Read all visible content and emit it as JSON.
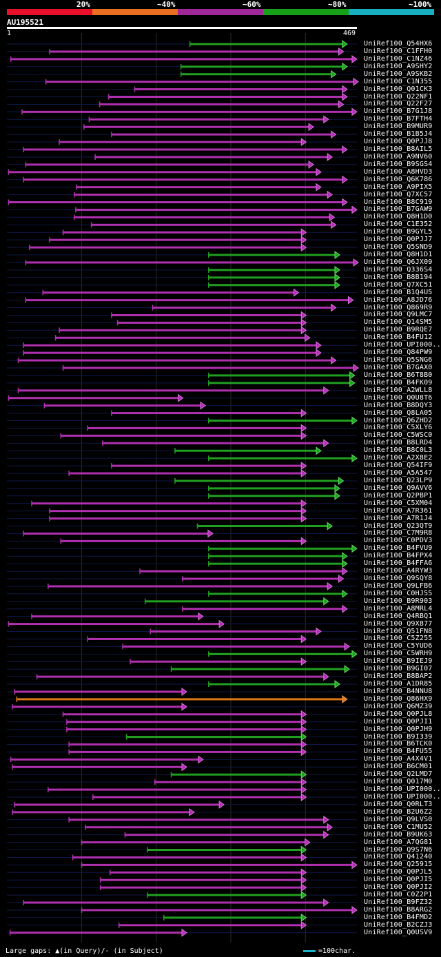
{
  "legend": {
    "segments": [
      {
        "label": "20%",
        "color": "#e8102a"
      },
      {
        "label": "~40%",
        "color": "#e87020"
      },
      {
        "label": "~60%",
        "color": "#a02898"
      },
      {
        "label": "~80%",
        "color": "#18a018"
      },
      {
        "label": "~100%",
        "color": "#18b0c0"
      }
    ]
  },
  "query": {
    "id": "AU195521",
    "start": "1",
    "end": "469",
    "length": 469
  },
  "hits": [
    {
      "id": "UniRef100_Q54HX6",
      "start": 245,
      "end": 455,
      "color": "green"
    },
    {
      "id": "UniRef100_C1FFH0",
      "start": 57,
      "end": 450,
      "color": "purple"
    },
    {
      "id": "UniRef100_C1NZ46",
      "start": 5,
      "end": 468,
      "color": "purple"
    },
    {
      "id": "UniRef100_A9SHY2",
      "start": 233,
      "end": 455,
      "color": "green"
    },
    {
      "id": "UniRef100_A9SKB2",
      "start": 233,
      "end": 440,
      "color": "green"
    },
    {
      "id": "UniRef100_C1N355",
      "start": 52,
      "end": 470,
      "color": "purple"
    },
    {
      "id": "UniRef100_Q01CK3",
      "start": 171,
      "end": 455,
      "color": "purple"
    },
    {
      "id": "UniRef100_Q22NF1",
      "start": 136,
      "end": 455,
      "color": "purple"
    },
    {
      "id": "UniRef100_Q22F27",
      "start": 124,
      "end": 450,
      "color": "purple"
    },
    {
      "id": "UniRef100_B7G1J8",
      "start": 20,
      "end": 468,
      "color": "purple"
    },
    {
      "id": "UniRef100_B7FTH4",
      "start": 110,
      "end": 430,
      "color": "purple"
    },
    {
      "id": "UniRef100_B9MUR9",
      "start": 103,
      "end": 410,
      "color": "purple"
    },
    {
      "id": "UniRef100_B1B5J4",
      "start": 140,
      "end": 440,
      "color": "purple"
    },
    {
      "id": "UniRef100_Q0PJJ8",
      "start": 70,
      "end": 400,
      "color": "purple"
    },
    {
      "id": "UniRef100_B8AIL5",
      "start": 22,
      "end": 455,
      "color": "purple"
    },
    {
      "id": "UniRef100_A9NV60",
      "start": 118,
      "end": 435,
      "color": "purple"
    },
    {
      "id": "UniRef100_B9SGS4",
      "start": 25,
      "end": 410,
      "color": "purple"
    },
    {
      "id": "UniRef100_A8HVD3",
      "start": 2,
      "end": 420,
      "color": "purple"
    },
    {
      "id": "UniRef100_Q6K786",
      "start": 22,
      "end": 455,
      "color": "purple"
    },
    {
      "id": "UniRef100_A9PIX5",
      "start": 93,
      "end": 420,
      "color": "purple"
    },
    {
      "id": "UniRef100_Q7XC57",
      "start": 90,
      "end": 435,
      "color": "purple"
    },
    {
      "id": "UniRef100_B8C919",
      "start": 2,
      "end": 455,
      "color": "purple"
    },
    {
      "id": "UniRef100_B7GAW9",
      "start": 92,
      "end": 468,
      "color": "purple"
    },
    {
      "id": "UniRef100_Q8H1D0",
      "start": 90,
      "end": 438,
      "color": "purple"
    },
    {
      "id": "UniRef100_C1E352",
      "start": 113,
      "end": 440,
      "color": "purple"
    },
    {
      "id": "UniRef100_B9GYL5",
      "start": 75,
      "end": 400,
      "color": "purple"
    },
    {
      "id": "UniRef100_Q0PJJ7",
      "start": 57,
      "end": 400,
      "color": "purple"
    },
    {
      "id": "UniRef100_Q5SND9",
      "start": 30,
      "end": 400,
      "color": "purple"
    },
    {
      "id": "UniRef100_Q8H1D1",
      "start": 270,
      "end": 445,
      "color": "green"
    },
    {
      "id": "UniRef100_Q6JX09",
      "start": 25,
      "end": 470,
      "color": "purple"
    },
    {
      "id": "UniRef100_Q336S4",
      "start": 270,
      "end": 445,
      "color": "green"
    },
    {
      "id": "UniRef100_B8B194",
      "start": 270,
      "end": 445,
      "color": "green"
    },
    {
      "id": "UniRef100_Q7XC51",
      "start": 270,
      "end": 445,
      "color": "green"
    },
    {
      "id": "UniRef100_B1Q4U5",
      "start": 48,
      "end": 390,
      "color": "purple"
    },
    {
      "id": "UniRef100_A8JD76",
      "start": 25,
      "end": 463,
      "color": "purple"
    },
    {
      "id": "UniRef100_Q869R9",
      "start": 195,
      "end": 440,
      "color": "purple"
    },
    {
      "id": "UniRef100_Q9LMC7",
      "start": 140,
      "end": 400,
      "color": "purple"
    },
    {
      "id": "UniRef100_Q14SM5",
      "start": 148,
      "end": 400,
      "color": "purple"
    },
    {
      "id": "UniRef100_B9RQE7",
      "start": 70,
      "end": 400,
      "color": "purple"
    },
    {
      "id": "UniRef100_B4FU12",
      "start": 65,
      "end": 405,
      "color": "purple"
    },
    {
      "id": "UniRef100_UPI000..",
      "start": 22,
      "end": 420,
      "color": "purple"
    },
    {
      "id": "UniRef100_Q84PW9",
      "start": 22,
      "end": 420,
      "color": "purple"
    },
    {
      "id": "UniRef100_Q5SNG6",
      "start": 15,
      "end": 440,
      "color": "purple"
    },
    {
      "id": "UniRef100_B7GAX0",
      "start": 75,
      "end": 470,
      "color": "purple"
    },
    {
      "id": "UniRef100_B6T8B0",
      "start": 270,
      "end": 465,
      "color": "green"
    },
    {
      "id": "UniRef100_B4FK09",
      "start": 270,
      "end": 465,
      "color": "green"
    },
    {
      "id": "UniRef100_A2WLL8",
      "start": 15,
      "end": 430,
      "color": "purple"
    },
    {
      "id": "UniRef100_Q0U8T6",
      "start": 2,
      "end": 235,
      "color": "purple"
    },
    {
      "id": "UniRef100_B8DQY3",
      "start": 50,
      "end": 265,
      "color": "purple"
    },
    {
      "id": "UniRef100_Q8LA05",
      "start": 140,
      "end": 400,
      "color": "purple"
    },
    {
      "id": "UniRef100_Q6ZHD2",
      "start": 270,
      "end": 468,
      "color": "green"
    },
    {
      "id": "UniRef100_C5XLY6",
      "start": 108,
      "end": 400,
      "color": "purple"
    },
    {
      "id": "UniRef100_C5WSC0",
      "start": 72,
      "end": 400,
      "color": "purple"
    },
    {
      "id": "UniRef100_B8LRD4",
      "start": 128,
      "end": 430,
      "color": "purple"
    },
    {
      "id": "UniRef100_B8C0L3",
      "start": 225,
      "end": 420,
      "color": "green"
    },
    {
      "id": "UniRef100_A2X8E2",
      "start": 270,
      "end": 468,
      "color": "green"
    },
    {
      "id": "UniRef100_Q54IF9",
      "start": 140,
      "end": 400,
      "color": "purple"
    },
    {
      "id": "UniRef100_A5A547",
      "start": 83,
      "end": 400,
      "color": "purple"
    },
    {
      "id": "UniRef100_Q23LP9",
      "start": 225,
      "end": 450,
      "color": "green"
    },
    {
      "id": "UniRef100_Q9AVV6",
      "start": 270,
      "end": 445,
      "color": "green"
    },
    {
      "id": "UniRef100_Q2PBP1",
      "start": 270,
      "end": 445,
      "color": "green"
    },
    {
      "id": "UniRef100_C5XM04",
      "start": 33,
      "end": 400,
      "color": "purple"
    },
    {
      "id": "UniRef100_A7R361",
      "start": 57,
      "end": 400,
      "color": "purple"
    },
    {
      "id": "UniRef100_A7R1J4",
      "start": 57,
      "end": 400,
      "color": "purple"
    },
    {
      "id": "UniRef100_Q23QT9",
      "start": 255,
      "end": 435,
      "color": "green"
    },
    {
      "id": "UniRef100_C7M9R8",
      "start": 22,
      "end": 275,
      "color": "purple"
    },
    {
      "id": "UniRef100_C0PDV3",
      "start": 72,
      "end": 400,
      "color": "purple"
    },
    {
      "id": "UniRef100_B4FVU9",
      "start": 270,
      "end": 468,
      "color": "green"
    },
    {
      "id": "UniRef100_B4FPX4",
      "start": 270,
      "end": 455,
      "color": "green"
    },
    {
      "id": "UniRef100_B4FFA6",
      "start": 270,
      "end": 455,
      "color": "green"
    },
    {
      "id": "UniRef100_A4RYW3",
      "start": 178,
      "end": 455,
      "color": "purple"
    },
    {
      "id": "UniRef100_Q9SQY8",
      "start": 235,
      "end": 450,
      "color": "purple"
    },
    {
      "id": "UniRef100_Q9LFB6",
      "start": 55,
      "end": 435,
      "color": "purple"
    },
    {
      "id": "UniRef100_C0HJ55",
      "start": 270,
      "end": 455,
      "color": "green"
    },
    {
      "id": "UniRef100_B9R903",
      "start": 185,
      "end": 430,
      "color": "green"
    },
    {
      "id": "UniRef100_A8MRL4",
      "start": 235,
      "end": 455,
      "color": "purple"
    },
    {
      "id": "UniRef100_Q4RBQ1",
      "start": 33,
      "end": 262,
      "color": "purple"
    },
    {
      "id": "UniRef100_Q9X877",
      "start": 2,
      "end": 290,
      "color": "purple"
    },
    {
      "id": "UniRef100_Q51FN8",
      "start": 192,
      "end": 420,
      "color": "purple"
    },
    {
      "id": "UniRef100_C5Z255",
      "start": 108,
      "end": 400,
      "color": "purple"
    },
    {
      "id": "UniRef100_C5YUD6",
      "start": 155,
      "end": 458,
      "color": "purple"
    },
    {
      "id": "UniRef100_C5WRH9",
      "start": 270,
      "end": 468,
      "color": "green"
    },
    {
      "id": "UniRef100_B9IEJ9",
      "start": 165,
      "end": 400,
      "color": "purple"
    },
    {
      "id": "UniRef100_B9GI07",
      "start": 220,
      "end": 458,
      "color": "green"
    },
    {
      "id": "UniRef100_B8BAP2",
      "start": 40,
      "end": 430,
      "color": "purple"
    },
    {
      "id": "UniRef100_A1DR85",
      "start": 270,
      "end": 445,
      "color": "green"
    },
    {
      "id": "UniRef100_B4NNU8",
      "start": 10,
      "end": 240,
      "color": "purple"
    },
    {
      "id": "UniRef100_Q86HX9",
      "start": 13,
      "end": 455,
      "color": "orange"
    },
    {
      "id": "UniRef100_Q6MZ39",
      "start": 7,
      "end": 240,
      "color": "purple"
    },
    {
      "id": "UniRef100_Q0PJL8",
      "start": 75,
      "end": 400,
      "color": "purple"
    },
    {
      "id": "UniRef100_Q0PJI1",
      "start": 80,
      "end": 400,
      "color": "purple"
    },
    {
      "id": "UniRef100_Q0PJH9",
      "start": 80,
      "end": 400,
      "color": "purple"
    },
    {
      "id": "UniRef100_B9I339",
      "start": 160,
      "end": 400,
      "color": "green"
    },
    {
      "id": "UniRef100_B6TCK0",
      "start": 83,
      "end": 400,
      "color": "purple"
    },
    {
      "id": "UniRef100_B4FU55",
      "start": 83,
      "end": 400,
      "color": "purple"
    },
    {
      "id": "UniRef100_A4X4V1",
      "start": 5,
      "end": 262,
      "color": "purple"
    },
    {
      "id": "UniRef100_B6CM01",
      "start": 7,
      "end": 240,
      "color": "purple"
    },
    {
      "id": "UniRef100_Q2LMD7",
      "start": 220,
      "end": 400,
      "color": "green"
    },
    {
      "id": "UniRef100_Q017M0",
      "start": 198,
      "end": 400,
      "color": "purple"
    },
    {
      "id": "UniRef100_UPI000..",
      "start": 55,
      "end": 400,
      "color": "purple"
    },
    {
      "id": "UniRef100_UPI000..",
      "start": 115,
      "end": 400,
      "color": "purple"
    },
    {
      "id": "UniRef100_Q0RLT3",
      "start": 10,
      "end": 290,
      "color": "purple"
    },
    {
      "id": "UniRef100_B2U6Z2",
      "start": 7,
      "end": 250,
      "color": "purple"
    },
    {
      "id": "UniRef100_Q9LVS0",
      "start": 83,
      "end": 430,
      "color": "purple"
    },
    {
      "id": "UniRef100_C1MU52",
      "start": 105,
      "end": 435,
      "color": "purple"
    },
    {
      "id": "UniRef100_B9UK63",
      "start": 158,
      "end": 430,
      "color": "purple"
    },
    {
      "id": "UniRef100_A7QG81",
      "start": 100,
      "end": 405,
      "color": "purple"
    },
    {
      "id": "UniRef100_Q9S7N6",
      "start": 188,
      "end": 400,
      "color": "green"
    },
    {
      "id": "UniRef100_Q41240",
      "start": 88,
      "end": 400,
      "color": "purple"
    },
    {
      "id": "UniRef100_Q25915",
      "start": 100,
      "end": 468,
      "color": "purple"
    },
    {
      "id": "UniRef100_Q0PJL5",
      "start": 138,
      "end": 400,
      "color": "purple"
    },
    {
      "id": "UniRef100_Q0PJI5",
      "start": 125,
      "end": 400,
      "color": "purple"
    },
    {
      "id": "UniRef100_Q0PJI2",
      "start": 125,
      "end": 400,
      "color": "purple"
    },
    {
      "id": "UniRef100_C0Z2P1",
      "start": 188,
      "end": 400,
      "color": "green"
    },
    {
      "id": "UniRef100_B9FZ32",
      "start": 22,
      "end": 430,
      "color": "purple"
    },
    {
      "id": "UniRef100_B8ARG2",
      "start": 100,
      "end": 468,
      "color": "purple"
    },
    {
      "id": "UniRef100_B4FMD2",
      "start": 210,
      "end": 400,
      "color": "green"
    },
    {
      "id": "UniRef100_B2CZJ3",
      "start": 150,
      "end": 400,
      "color": "purple"
    },
    {
      "id": "UniRef100_Q0USV9",
      "start": 4,
      "end": 240,
      "color": "purple"
    }
  ],
  "colors": {
    "purple": "#b030b0",
    "green": "#20a020",
    "orange": "#e07818",
    "arrow_purple": "#e070e8",
    "arrow_green": "#60e060",
    "arrow_orange": "#f0a050"
  },
  "footer": {
    "gaps_text": "Large gaps: ▲(in Query)/- (in Subject)",
    "scale_text": "=100char."
  }
}
